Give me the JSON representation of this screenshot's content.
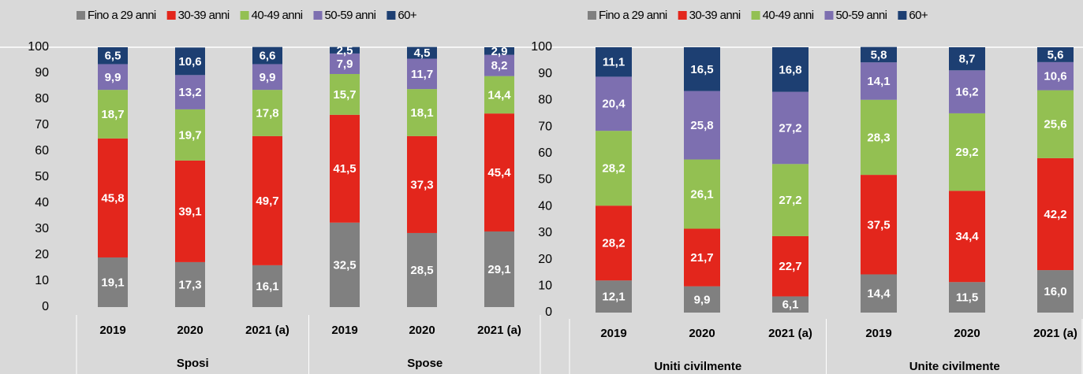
{
  "chart_data": [
    {
      "type": "stacked_bar",
      "categories": [
        "2019",
        "2020",
        "2021 (a)",
        "2019",
        "2020",
        "2021 (a)"
      ],
      "groups": [
        "Sposi",
        "Spose"
      ],
      "ylim": [
        0,
        100
      ],
      "yticks": [
        0,
        10,
        20,
        30,
        40,
        50,
        60,
        70,
        80,
        90,
        100
      ],
      "series": [
        {
          "name": "Fino a 29 anni",
          "color": "#808080",
          "values": [
            19.1,
            17.3,
            16.1,
            32.5,
            28.5,
            29.1
          ],
          "value_labels": [
            "19,1",
            "17,3",
            "16,1",
            "32,5",
            "28,5",
            "29,1"
          ]
        },
        {
          "name": "30-39 anni",
          "color": "#e3261c",
          "values": [
            45.8,
            39.1,
            49.7,
            41.5,
            37.3,
            45.4
          ],
          "value_labels": [
            "45,8",
            "39,1",
            "49,7",
            "41,5",
            "37,3",
            "45,4"
          ]
        },
        {
          "name": "40-49 anni",
          "color": "#93c052",
          "values": [
            18.7,
            19.7,
            17.8,
            15.7,
            18.1,
            14.4
          ],
          "value_labels": [
            "18,7",
            "19,7",
            "17,8",
            "15,7",
            "18,1",
            "14,4"
          ]
        },
        {
          "name": "50-59 anni",
          "color": "#7d6fb0",
          "values": [
            9.9,
            13.2,
            9.9,
            7.9,
            11.7,
            8.2
          ],
          "value_labels": [
            "9,9",
            "13,2",
            "9,9",
            "7,9",
            "11,7",
            "8,2"
          ]
        },
        {
          "name": "60+",
          "color": "#1d3f72",
          "values": [
            6.5,
            10.6,
            6.6,
            2.5,
            4.5,
            2.9
          ],
          "value_labels": [
            "6,5",
            "10,6",
            "6,6",
            "2,5",
            "4,5",
            "2,9"
          ]
        }
      ]
    },
    {
      "type": "stacked_bar",
      "categories": [
        "2019",
        "2020",
        "2021 (a)",
        "2019",
        "2020",
        "2021 (a)"
      ],
      "groups": [
        "Uniti civilmente",
        "Unite civilmente"
      ],
      "ylim": [
        0,
        100
      ],
      "yticks": [
        0,
        10,
        20,
        30,
        40,
        50,
        60,
        70,
        80,
        90,
        100
      ],
      "series": [
        {
          "name": "Fino a 29 anni",
          "color": "#808080",
          "values": [
            12.1,
            9.9,
            6.1,
            14.4,
            11.5,
            16.0
          ],
          "value_labels": [
            "12,1",
            "9,9",
            "6,1",
            "14,4",
            "11,5",
            "16,0"
          ]
        },
        {
          "name": "30-39 anni",
          "color": "#e3261c",
          "values": [
            28.2,
            21.7,
            22.7,
            37.5,
            34.4,
            42.2
          ],
          "value_labels": [
            "28,2",
            "21,7",
            "22,7",
            "37,5",
            "34,4",
            "42,2"
          ]
        },
        {
          "name": "40-49 anni",
          "color": "#93c052",
          "values": [
            28.2,
            26.1,
            27.2,
            28.3,
            29.2,
            25.6
          ],
          "value_labels": [
            "28,2",
            "26,1",
            "27,2",
            "28,3",
            "29,2",
            "25,6"
          ]
        },
        {
          "name": "50-59 anni",
          "color": "#7d6fb0",
          "values": [
            20.4,
            25.8,
            27.2,
            14.1,
            16.2,
            10.6
          ],
          "value_labels": [
            "20,4",
            "25,8",
            "27,2",
            "14,1",
            "16,2",
            "10,6"
          ]
        },
        {
          "name": "60+",
          "color": "#1d3f72",
          "values": [
            11.1,
            16.5,
            16.8,
            5.8,
            8.7,
            5.6
          ],
          "value_labels": [
            "11,1",
            "16,5",
            "16,8",
            "5,8",
            "8,7",
            "5,6"
          ]
        }
      ]
    }
  ]
}
